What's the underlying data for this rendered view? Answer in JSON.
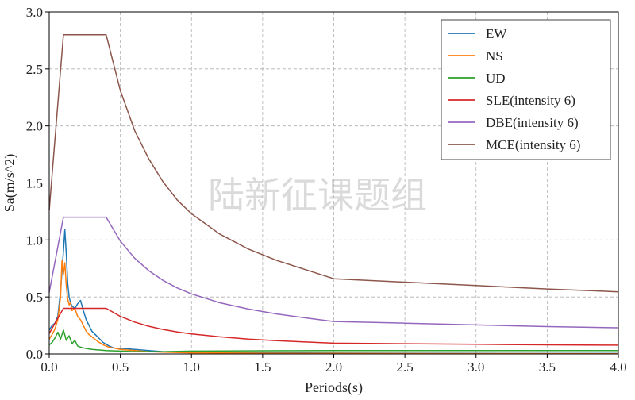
{
  "colors": {
    "EW": "#1f77b4",
    "NS": "#ff7f0e",
    "UD": "#2ca02c",
    "SLE": "#d62728",
    "DBE": "#9467bd",
    "MCE": "#8c564b",
    "grid": "#b0b0b0"
  },
  "watermark": "陆新征课题组",
  "chart_data": {
    "type": "line",
    "title": "",
    "xlabel": "Periods(s)",
    "ylabel": "Sa(m/s^2)",
    "xlim": [
      0.0,
      4.0
    ],
    "ylim": [
      0.0,
      3.0
    ],
    "xticks": [
      "0.0",
      "0.5",
      "1.0",
      "1.5",
      "2.0",
      "2.5",
      "3.0",
      "3.5",
      "4.0"
    ],
    "yticks": [
      "0.0",
      "0.5",
      "1.0",
      "1.5",
      "2.0",
      "2.5",
      "3.0"
    ],
    "grid": true,
    "grid_style": "dashed",
    "legend_position": "top-right",
    "series": [
      {
        "name": "EW",
        "x": [
          0.0,
          0.02,
          0.04,
          0.06,
          0.08,
          0.1,
          0.11,
          0.12,
          0.13,
          0.14,
          0.15,
          0.16,
          0.18,
          0.2,
          0.22,
          0.24,
          0.26,
          0.28,
          0.3,
          0.34,
          0.38,
          0.42,
          0.46,
          0.5,
          0.6,
          0.7,
          0.8,
          1.0,
          1.5,
          2.0,
          3.0,
          4.0
        ],
        "y": [
          0.21,
          0.25,
          0.27,
          0.33,
          0.55,
          0.9,
          1.09,
          0.88,
          0.62,
          0.5,
          0.45,
          0.42,
          0.4,
          0.44,
          0.47,
          0.38,
          0.3,
          0.25,
          0.2,
          0.15,
          0.1,
          0.07,
          0.05,
          0.05,
          0.04,
          0.03,
          0.02,
          0.015,
          0.01,
          0.008,
          0.005,
          0.004
        ]
      },
      {
        "name": "NS",
        "x": [
          0.0,
          0.02,
          0.04,
          0.06,
          0.08,
          0.09,
          0.1,
          0.11,
          0.12,
          0.13,
          0.14,
          0.15,
          0.16,
          0.18,
          0.2,
          0.22,
          0.24,
          0.26,
          0.28,
          0.3,
          0.34,
          0.38,
          0.42,
          0.46,
          0.5,
          0.6,
          0.7,
          0.8,
          1.0,
          1.5,
          2.0,
          3.0,
          4.0
        ],
        "y": [
          0.13,
          0.17,
          0.22,
          0.3,
          0.5,
          0.82,
          0.7,
          0.8,
          0.6,
          0.48,
          0.43,
          0.45,
          0.38,
          0.4,
          0.33,
          0.3,
          0.25,
          0.2,
          0.17,
          0.15,
          0.11,
          0.08,
          0.06,
          0.05,
          0.04,
          0.03,
          0.02,
          0.015,
          0.01,
          0.006,
          0.005,
          0.003,
          0.002
        ]
      },
      {
        "name": "UD",
        "x": [
          0.0,
          0.02,
          0.04,
          0.06,
          0.08,
          0.1,
          0.12,
          0.14,
          0.16,
          0.18,
          0.2,
          0.22,
          0.25,
          0.3,
          0.35,
          0.4,
          0.5,
          0.6,
          0.8,
          1.0,
          1.5,
          2.0,
          3.0,
          4.0
        ],
        "y": [
          0.08,
          0.1,
          0.14,
          0.19,
          0.13,
          0.21,
          0.12,
          0.16,
          0.09,
          0.12,
          0.07,
          0.06,
          0.05,
          0.04,
          0.035,
          0.03,
          0.025,
          0.02,
          0.02,
          0.025,
          0.028,
          0.03,
          0.03,
          0.03
        ]
      },
      {
        "name": "SLE(intensity 6)",
        "x": [
          0.0,
          0.1,
          0.4,
          0.5,
          0.6,
          0.7,
          0.8,
          0.9,
          1.0,
          1.2,
          1.4,
          1.6,
          1.8,
          2.0,
          2.5,
          3.0,
          3.5,
          4.0
        ],
        "y": [
          0.18,
          0.4,
          0.4,
          0.33,
          0.28,
          0.243,
          0.215,
          0.193,
          0.176,
          0.15,
          0.131,
          0.117,
          0.105,
          0.095,
          0.09,
          0.085,
          0.08,
          0.077
        ]
      },
      {
        "name": "DBE(intensity 6)",
        "x": [
          0.0,
          0.1,
          0.4,
          0.5,
          0.6,
          0.7,
          0.8,
          0.9,
          1.0,
          1.2,
          1.4,
          1.6,
          1.8,
          2.0,
          2.5,
          3.0,
          3.5,
          4.0
        ],
        "y": [
          0.54,
          1.2,
          1.2,
          0.99,
          0.84,
          0.73,
          0.645,
          0.579,
          0.527,
          0.449,
          0.394,
          0.351,
          0.317,
          0.285,
          0.27,
          0.255,
          0.24,
          0.23
        ]
      },
      {
        "name": "MCE(intensity 6)",
        "x": [
          0.0,
          0.1,
          0.4,
          0.5,
          0.6,
          0.7,
          0.8,
          0.9,
          1.0,
          1.2,
          1.4,
          1.6,
          1.8,
          2.0,
          2.5,
          3.0,
          3.5,
          4.0
        ],
        "y": [
          1.26,
          2.8,
          2.8,
          2.31,
          1.96,
          1.71,
          1.51,
          1.35,
          1.23,
          1.05,
          0.92,
          0.82,
          0.74,
          0.66,
          0.63,
          0.6,
          0.57,
          0.545
        ]
      }
    ]
  }
}
